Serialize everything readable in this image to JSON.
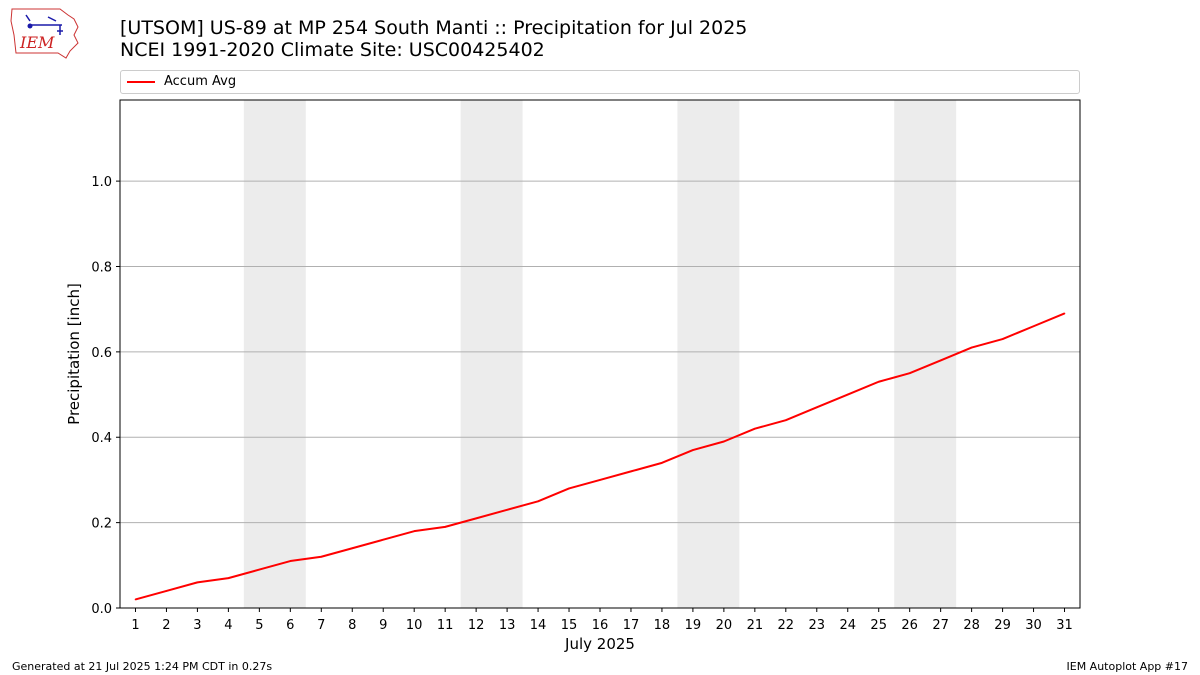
{
  "header": {
    "title_line1": "[UTSOM] US-89 at MP 254 South Manti  :: Precipitation for Jul 2025",
    "title_line2": "NCEI 1991-2020 Climate Site: USC00425402"
  },
  "logo": {
    "text": "IEM",
    "icon": "iem-logo-icon"
  },
  "footer": {
    "left": "Generated at 21 Jul 2025 1:24 PM CDT in 0.27s",
    "right": "IEM Autoplot App #17"
  },
  "colors": {
    "series": "#ff0000",
    "weekend_band": "#ececec",
    "grid": "#b0b0b0"
  },
  "chart_data": {
    "type": "line",
    "title": "[UTSOM] US-89 at MP 254 South Manti  :: Precipitation for Jul 2025",
    "subtitle": "NCEI 1991-2020 Climate Site: USC00425402",
    "xlabel": "July 2025",
    "ylabel": "Precipitation [inch]",
    "xlim": [
      0.5,
      31.5
    ],
    "ylim": [
      0,
      1.19
    ],
    "x": [
      1,
      2,
      3,
      4,
      5,
      6,
      7,
      8,
      9,
      10,
      11,
      12,
      13,
      14,
      15,
      16,
      17,
      18,
      19,
      20,
      21,
      22,
      23,
      24,
      25,
      26,
      27,
      28,
      29,
      30,
      31
    ],
    "x_tick_labels": [
      "1",
      "2",
      "3",
      "4",
      "5",
      "6",
      "7",
      "8",
      "9",
      "10",
      "11",
      "12",
      "13",
      "14",
      "15",
      "16",
      "17",
      "18",
      "19",
      "20",
      "21",
      "22",
      "23",
      "24",
      "25",
      "26",
      "27",
      "28",
      "29",
      "30",
      "31"
    ],
    "y_ticks": [
      0.0,
      0.2,
      0.4,
      0.6,
      0.8,
      1.0
    ],
    "y_tick_labels": [
      "0.0",
      "0.2",
      "0.4",
      "0.6",
      "0.8",
      "1.0"
    ],
    "grid": "horizontal",
    "weekend_days": [
      [
        5,
        6
      ],
      [
        12,
        13
      ],
      [
        19,
        20
      ],
      [
        26,
        27
      ]
    ],
    "legend": {
      "placement": "top",
      "entries": [
        "Accum Avg"
      ]
    },
    "series": [
      {
        "name": "Accum Avg",
        "color": "#ff0000",
        "values": [
          0.02,
          0.04,
          0.06,
          0.07,
          0.09,
          0.11,
          0.12,
          0.14,
          0.16,
          0.18,
          0.19,
          0.21,
          0.23,
          0.25,
          0.28,
          0.3,
          0.32,
          0.34,
          0.37,
          0.39,
          0.42,
          0.44,
          0.47,
          0.5,
          0.53,
          0.55,
          0.58,
          0.61,
          0.63,
          0.66,
          0.69
        ]
      }
    ]
  }
}
